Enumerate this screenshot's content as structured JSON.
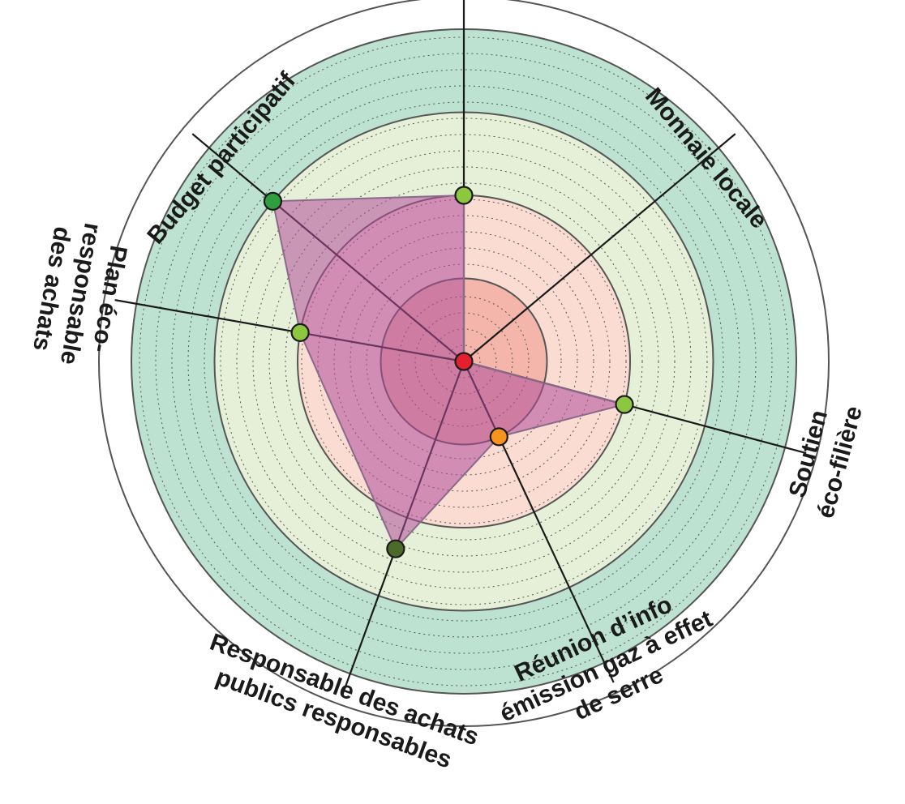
{
  "chart_data": {
    "type": "radar",
    "max_value": 4,
    "bands": [
      {
        "level": 1,
        "color": "#f4b6ab"
      },
      {
        "level": 2,
        "color": "#fadcd2"
      },
      {
        "level": 3,
        "color": "#e6f0d8"
      },
      {
        "level": 4,
        "color": "#bde2d1"
      }
    ],
    "axes": [
      {
        "id": "top",
        "label_lines": [],
        "value": 2.0,
        "marker_color": "#8dc63f"
      },
      {
        "id": "monnaie-locale",
        "label_lines": [
          "Monnaie locale"
        ],
        "value": 0.0,
        "marker_color": "#8dc63f"
      },
      {
        "id": "soutien-eco-filiere",
        "label_lines": [
          "Soutien",
          "éco-filière"
        ],
        "value": 2.0,
        "marker_color": "#8dc63f"
      },
      {
        "id": "reunion-info",
        "label_lines": [
          "Réunion d’info",
          "émission gaz à effet",
          "de serre"
        ],
        "value": 1.0,
        "marker_color": "#f7941d"
      },
      {
        "id": "responsable-achats",
        "label_lines": [
          "Responsable des achats",
          "publics responsables"
        ],
        "value": 2.4,
        "marker_color": "#4a6b2a"
      },
      {
        "id": "plan-eco-responsable",
        "label_lines": [
          "Plan éco-",
          "responsable",
          "des achats"
        ],
        "value": 2.0,
        "marker_color": "#8dc63f"
      },
      {
        "id": "budget-participatif",
        "label_lines": [
          "Budget participatif"
        ],
        "value": 3.0,
        "marker_color": "#2e9e3e"
      }
    ],
    "center_marker_color": "#e5202e",
    "polygon_color": "#b04d9a"
  }
}
